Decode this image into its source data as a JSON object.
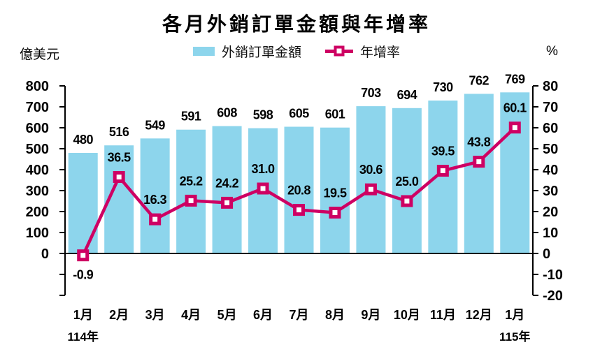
{
  "title": "各月外銷訂單金額與年增率",
  "axes": {
    "left_unit": "億美元",
    "right_unit": "%"
  },
  "legend": {
    "bar_label": "外銷訂單金額",
    "line_label": "年增率"
  },
  "colors": {
    "bar": "#8DD5EC",
    "line": "#CE0063",
    "text": "#000000",
    "axis": "#000000"
  },
  "chart_data": {
    "type": "bar+line combo",
    "title": "各月外銷訂單金額與年增率",
    "categories": [
      "1月",
      "2月",
      "3月",
      "4月",
      "5月",
      "6月",
      "7月",
      "8月",
      "9月",
      "10月",
      "11月",
      "12月",
      "1月"
    ],
    "year_annotations": [
      {
        "category_index": 0,
        "label": "114年"
      },
      {
        "category_index": 12,
        "label": "115年"
      }
    ],
    "series": [
      {
        "name": "外銷訂單金額",
        "type": "bar",
        "axis": "left",
        "unit": "億美元",
        "values": [
          480,
          516,
          549,
          591,
          608,
          598,
          605,
          601,
          703,
          694,
          730,
          762,
          769
        ]
      },
      {
        "name": "年增率",
        "type": "line",
        "axis": "right",
        "unit": "%",
        "values": [
          -0.9,
          36.5,
          16.3,
          25.2,
          24.2,
          31.0,
          20.8,
          19.5,
          30.6,
          25.0,
          39.5,
          43.8,
          60.1
        ]
      }
    ],
    "left_axis": {
      "label": "億美元",
      "min": 0,
      "max": 800,
      "tick_step": 100,
      "tick_labels": [
        "800",
        "700",
        "600",
        "500",
        "400",
        "300",
        "200",
        "100",
        "0"
      ]
    },
    "right_axis": {
      "label": "%",
      "min": -20,
      "max": 80,
      "tick_step": 10,
      "tick_labels": [
        "80",
        "70",
        "60",
        "50",
        "40",
        "30",
        "20",
        "10",
        "0",
        "-10",
        "-20"
      ]
    },
    "grid": false,
    "legend_position": "top",
    "value_label_format": {
      "bar": "integer",
      "line": "one_decimal"
    }
  }
}
